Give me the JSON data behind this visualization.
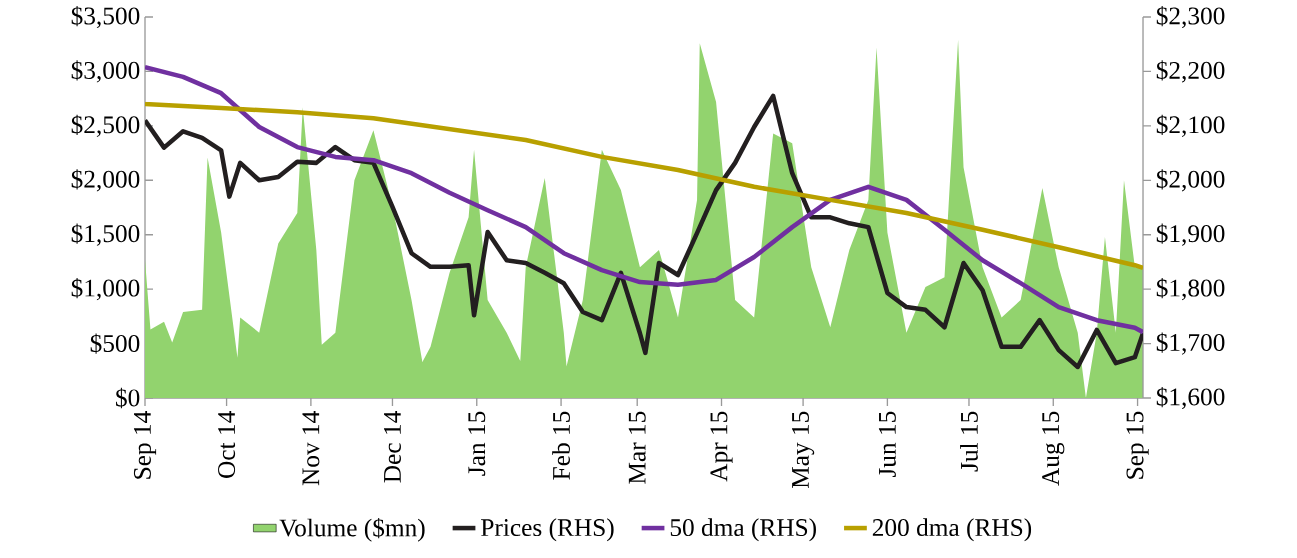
{
  "chart_data": {
    "type": "line",
    "xlim": [
      "2014-09-01",
      "2015-09-03"
    ],
    "xticks": [
      {
        "value": "2014-09-01",
        "label": "Sep 14"
      },
      {
        "value": "2014-10-01",
        "label": "Oct 14"
      },
      {
        "value": "2014-11-01",
        "label": "Nov 14"
      },
      {
        "value": "2014-12-01",
        "label": "Dec 14"
      },
      {
        "value": "2015-01-01",
        "label": "Jan 15"
      },
      {
        "value": "2015-02-01",
        "label": "Feb 15"
      },
      {
        "value": "2015-03-01",
        "label": "Mar 15"
      },
      {
        "value": "2015-04-01",
        "label": "Apr 15"
      },
      {
        "value": "2015-05-01",
        "label": "May 15"
      },
      {
        "value": "2015-06-01",
        "label": "Jun 15"
      },
      {
        "value": "2015-07-01",
        "label": "Jul 15"
      },
      {
        "value": "2015-08-01",
        "label": "Aug 15"
      },
      {
        "value": "2015-09-01",
        "label": "Sep 15"
      }
    ],
    "ylim": [
      0,
      3500
    ],
    "yticks": [
      {
        "value": 0,
        "label": "$0"
      },
      {
        "value": 500,
        "label": "$500"
      },
      {
        "value": 1000,
        "label": "$1,000"
      },
      {
        "value": 1500,
        "label": "$1,500"
      },
      {
        "value": 2000,
        "label": "$2,000"
      },
      {
        "value": 2500,
        "label": "$2,500"
      },
      {
        "value": 3000,
        "label": "$3,000"
      },
      {
        "value": 3500,
        "label": "$3,500"
      }
    ],
    "y2lim": [
      1600,
      2300
    ],
    "y2ticks": [
      {
        "value": 1600,
        "label": "$1,600"
      },
      {
        "value": 1700,
        "label": "$1,700"
      },
      {
        "value": 1800,
        "label": "$1,800"
      },
      {
        "value": 1900,
        "label": "$1,900"
      },
      {
        "value": 2000,
        "label": "$2,000"
      },
      {
        "value": 2100,
        "label": "$2,100"
      },
      {
        "value": 2200,
        "label": "$2,200"
      },
      {
        "value": 2300,
        "label": "$2,300"
      }
    ],
    "legend": "bottom",
    "series": [
      {
        "name": "Volume ($mn)",
        "type": "area",
        "color": "#92d36e",
        "x": [
          "2014-09-01",
          "2014-09-03",
          "2014-09-08",
          "2014-09-11",
          "2014-09-15",
          "2014-09-22",
          "2014-09-24",
          "2014-09-29",
          "2014-10-05",
          "2014-10-06",
          "2014-10-13",
          "2014-10-20",
          "2014-10-27",
          "2014-10-29",
          "2014-11-03",
          "2014-11-05",
          "2014-11-10",
          "2014-11-17",
          "2014-11-24",
          "2014-12-01",
          "2014-12-08",
          "2014-12-12",
          "2014-12-15",
          "2014-12-22",
          "2014-12-29",
          "2014-12-31",
          "2015-01-05",
          "2015-01-12",
          "2015-01-17",
          "2015-01-19",
          "2015-01-26",
          "2015-02-02",
          "2015-02-03",
          "2015-02-09",
          "2015-02-16",
          "2015-02-23",
          "2015-03-02",
          "2015-03-09",
          "2015-03-16",
          "2015-03-23",
          "2015-03-24",
          "2015-03-30",
          "2015-04-06",
          "2015-04-13",
          "2015-04-20",
          "2015-04-27",
          "2015-05-04",
          "2015-05-11",
          "2015-05-18",
          "2015-05-25",
          "2015-05-28",
          "2015-06-01",
          "2015-06-08",
          "2015-06-15",
          "2015-06-22",
          "2015-06-27",
          "2015-06-29",
          "2015-07-06",
          "2015-07-13",
          "2015-07-20",
          "2015-07-28",
          "2015-08-03",
          "2015-08-10",
          "2015-08-13",
          "2015-08-17",
          "2015-08-20",
          "2015-08-24",
          "2015-08-27",
          "2015-08-31",
          "2015-09-03"
        ],
        "values": [
          1270,
          630,
          700,
          510,
          790,
          810,
          2210,
          1520,
          370,
          740,
          600,
          1420,
          1700,
          2670,
          1360,
          490,
          600,
          2000,
          2460,
          1760,
          900,
          330,
          470,
          1150,
          1660,
          2280,
          900,
          600,
          340,
          1200,
          2020,
          600,
          290,
          900,
          2280,
          1910,
          1200,
          1360,
          740,
          1820,
          3260,
          2720,
          900,
          740,
          2430,
          2340,
          1200,
          650,
          1360,
          1820,
          3220,
          1520,
          600,
          1020,
          1110,
          3290,
          2120,
          1200,
          740,
          900,
          1930,
          1200,
          600,
          0,
          600,
          1480,
          600,
          2000,
          1200,
          1200
        ]
      },
      {
        "name": "Prices (RHS)",
        "type": "line",
        "axis": "y2",
        "color": "#231f20",
        "x": [
          "2014-09-01",
          "2014-09-08",
          "2014-09-15",
          "2014-09-22",
          "2014-09-29",
          "2014-10-02",
          "2014-10-06",
          "2014-10-13",
          "2014-10-20",
          "2014-10-27",
          "2014-11-03",
          "2014-11-10",
          "2014-11-17",
          "2014-11-24",
          "2014-12-01",
          "2014-12-08",
          "2014-12-15",
          "2014-12-22",
          "2014-12-29",
          "2014-12-31",
          "2015-01-05",
          "2015-01-12",
          "2015-01-19",
          "2015-01-26",
          "2015-02-02",
          "2015-02-09",
          "2015-02-16",
          "2015-02-23",
          "2015-03-02",
          "2015-03-04",
          "2015-03-09",
          "2015-03-16",
          "2015-03-23",
          "2015-03-30",
          "2015-04-06",
          "2015-04-13",
          "2015-04-20",
          "2015-04-27",
          "2015-05-04",
          "2015-05-11",
          "2015-05-18",
          "2015-05-25",
          "2015-06-01",
          "2015-06-08",
          "2015-06-15",
          "2015-06-22",
          "2015-06-29",
          "2015-07-06",
          "2015-07-13",
          "2015-07-20",
          "2015-07-27",
          "2015-08-03",
          "2015-08-10",
          "2015-08-17",
          "2015-08-24",
          "2015-08-31",
          "2015-09-03"
        ],
        "values": [
          2110,
          2060,
          2090,
          2078,
          2055,
          1970,
          2032,
          2000,
          2006,
          2034,
          2032,
          2061,
          2037,
          2032,
          1951,
          1866,
          1841,
          1841,
          1844,
          1752,
          1905,
          1853,
          1848,
          1830,
          1811,
          1758,
          1743,
          1830,
          1719,
          1683,
          1848,
          1826,
          1903,
          1982,
          2032,
          2098,
          2155,
          2013,
          1932,
          1932,
          1921,
          1914,
          1793,
          1767,
          1762,
          1730,
          1848,
          1798,
          1694,
          1694,
          1743,
          1688,
          1657,
          1725,
          1664,
          1675,
          1719
        ]
      },
      {
        "name": "50 dma (RHS)",
        "type": "line",
        "axis": "y2",
        "color": "#7030a0",
        "x": [
          "2014-09-01",
          "2014-09-15",
          "2014-09-29",
          "2014-10-13",
          "2014-10-27",
          "2014-11-10",
          "2014-11-24",
          "2014-12-08",
          "2014-12-22",
          "2015-01-05",
          "2015-01-19",
          "2015-02-02",
          "2015-02-16",
          "2015-03-02",
          "2015-03-16",
          "2015-03-30",
          "2015-04-13",
          "2015-04-27",
          "2015-05-11",
          "2015-05-25",
          "2015-06-08",
          "2015-06-22",
          "2015-07-06",
          "2015-07-20",
          "2015-08-03",
          "2015-08-17",
          "2015-08-31",
          "2015-09-03"
        ],
        "values": [
          2208,
          2190,
          2160,
          2098,
          2061,
          2043,
          2037,
          2013,
          1977,
          1945,
          1914,
          1866,
          1835,
          1813,
          1808,
          1817,
          1859,
          1914,
          1964,
          1988,
          1964,
          1909,
          1853,
          1811,
          1767,
          1743,
          1729,
          1721
        ]
      },
      {
        "name": "200 dma (RHS)",
        "type": "line",
        "axis": "y2",
        "color": "#b8a000",
        "x": [
          "2014-09-01",
          "2014-09-29",
          "2014-10-27",
          "2014-11-24",
          "2014-12-22",
          "2015-01-19",
          "2015-02-16",
          "2015-03-16",
          "2015-04-13",
          "2015-05-11",
          "2015-06-08",
          "2015-07-06",
          "2015-08-03",
          "2015-08-31",
          "2015-09-03"
        ],
        "values": [
          2140,
          2133,
          2125,
          2114,
          2094,
          2074,
          2043,
          2019,
          1988,
          1964,
          1940,
          1909,
          1877,
          1844,
          1839
        ]
      }
    ]
  }
}
